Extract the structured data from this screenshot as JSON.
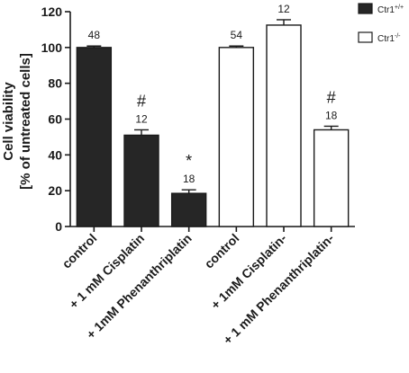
{
  "chart_data": {
    "type": "bar",
    "ylabel_line1": "Cell viability",
    "ylabel_line2": "[% of untreated cells]",
    "ylim": [
      0,
      120
    ],
    "yticks": [
      "0",
      "20",
      "40",
      "60",
      "80",
      "100",
      "120"
    ],
    "categories": [
      "control",
      "+ 1 mM Cisplatin",
      "+ 1mM Phenanthriplatin",
      "control",
      "+ 1mM Cisplatin-",
      "+ 1 mM Phenanthriplatin-"
    ],
    "series": [
      {
        "name": "Ctr1",
        "superscript": "+/+",
        "color": "#262626",
        "values": [
          100,
          51,
          18.5,
          null,
          null,
          null
        ],
        "errors": [
          0.8,
          3,
          2,
          null,
          null,
          null
        ]
      },
      {
        "name": "Ctr1",
        "superscript": "-/-",
        "color": "#ffffff",
        "values": [
          null,
          null,
          null,
          100,
          112.5,
          54
        ],
        "errors": [
          null,
          null,
          null,
          0.8,
          3,
          2
        ]
      }
    ],
    "n_labels": [
      "48",
      "12",
      "18",
      "54",
      "12",
      "18"
    ],
    "significance": [
      "",
      "#",
      "*",
      "",
      "",
      "#"
    ],
    "legend_position": "top-right",
    "grid": false
  }
}
